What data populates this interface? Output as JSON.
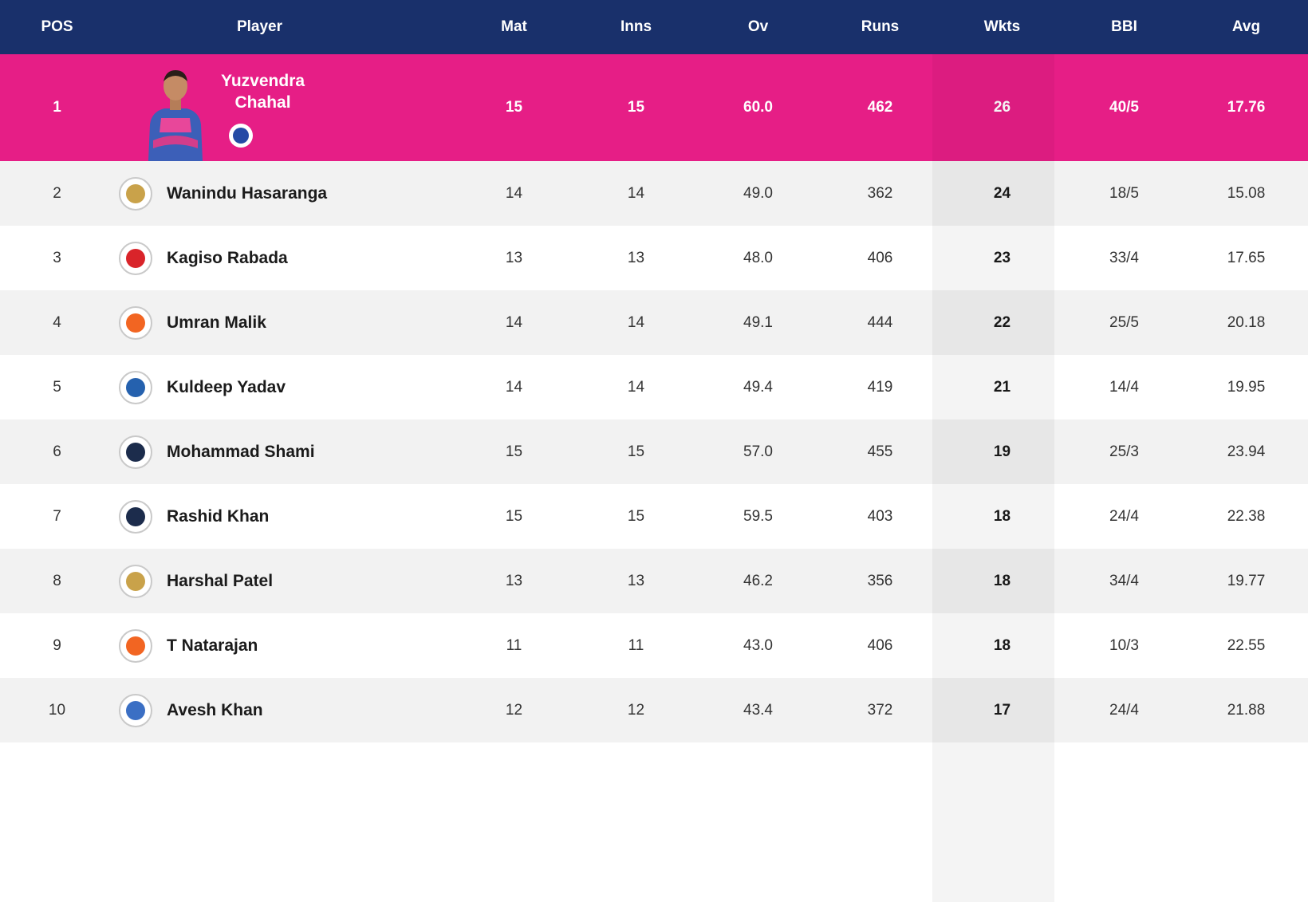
{
  "columns": {
    "pos": "POS",
    "player": "Player",
    "mat": "Mat",
    "inns": "Inns",
    "ov": "Ov",
    "runs": "Runs",
    "wkts": "Wkts",
    "bbi": "BBI",
    "avg": "Avg"
  },
  "colors": {
    "header_bg": "#19306b",
    "leader_bg": "#e61e86",
    "row_alt_bg": "#f2f2f2"
  },
  "leader": {
    "pos": "1",
    "name_line1": "Yuzvendra",
    "name_line2": "Chahal",
    "mat": "15",
    "inns": "15",
    "ov": "60.0",
    "runs": "462",
    "wkts": "26",
    "bbi": "40/5",
    "avg": "17.76",
    "team_icon": "rajasthan-royals-logo-icon"
  },
  "rows": [
    {
      "pos": "2",
      "name": "Wanindu Hasaranga",
      "mat": "14",
      "inns": "14",
      "ov": "49.0",
      "runs": "362",
      "wkts": "24",
      "bbi": "18/5",
      "avg": "15.08",
      "team_icon": "rcb-logo-icon",
      "logo_color": "#c9a24a"
    },
    {
      "pos": "3",
      "name": "Kagiso Rabada",
      "mat": "13",
      "inns": "13",
      "ov": "48.0",
      "runs": "406",
      "wkts": "23",
      "bbi": "33/4",
      "avg": "17.65",
      "team_icon": "punjab-kings-logo-icon",
      "logo_color": "#d9242a"
    },
    {
      "pos": "4",
      "name": "Umran Malik",
      "mat": "14",
      "inns": "14",
      "ov": "49.1",
      "runs": "444",
      "wkts": "22",
      "bbi": "25/5",
      "avg": "20.18",
      "team_icon": "sunrisers-logo-icon",
      "logo_color": "#f26522"
    },
    {
      "pos": "5",
      "name": "Kuldeep Yadav",
      "mat": "14",
      "inns": "14",
      "ov": "49.4",
      "runs": "419",
      "wkts": "21",
      "bbi": "14/4",
      "avg": "19.95",
      "team_icon": "delhi-capitals-logo-icon",
      "logo_color": "#2561ae"
    },
    {
      "pos": "6",
      "name": "Mohammad Shami",
      "mat": "15",
      "inns": "15",
      "ov": "57.0",
      "runs": "455",
      "wkts": "19",
      "bbi": "25/3",
      "avg": "23.94",
      "team_icon": "gujarat-titans-logo-icon",
      "logo_color": "#1c2c4c"
    },
    {
      "pos": "7",
      "name": "Rashid Khan",
      "mat": "15",
      "inns": "15",
      "ov": "59.5",
      "runs": "403",
      "wkts": "18",
      "bbi": "24/4",
      "avg": "22.38",
      "team_icon": "gujarat-titans-logo-icon",
      "logo_color": "#1c2c4c"
    },
    {
      "pos": "8",
      "name": "Harshal Patel",
      "mat": "13",
      "inns": "13",
      "ov": "46.2",
      "runs": "356",
      "wkts": "18",
      "bbi": "34/4",
      "avg": "19.77",
      "team_icon": "rcb-logo-icon",
      "logo_color": "#c9a24a"
    },
    {
      "pos": "9",
      "name": "T Natarajan",
      "mat": "11",
      "inns": "11",
      "ov": "43.0",
      "runs": "406",
      "wkts": "18",
      "bbi": "10/3",
      "avg": "22.55",
      "team_icon": "sunrisers-logo-icon",
      "logo_color": "#f26522"
    },
    {
      "pos": "10",
      "name": "Avesh Khan",
      "mat": "12",
      "inns": "12",
      "ov": "43.4",
      "runs": "372",
      "wkts": "17",
      "bbi": "24/4",
      "avg": "21.88",
      "team_icon": "lucknow-super-giants-logo-icon",
      "logo_color": "#3b6fc4"
    }
  ]
}
